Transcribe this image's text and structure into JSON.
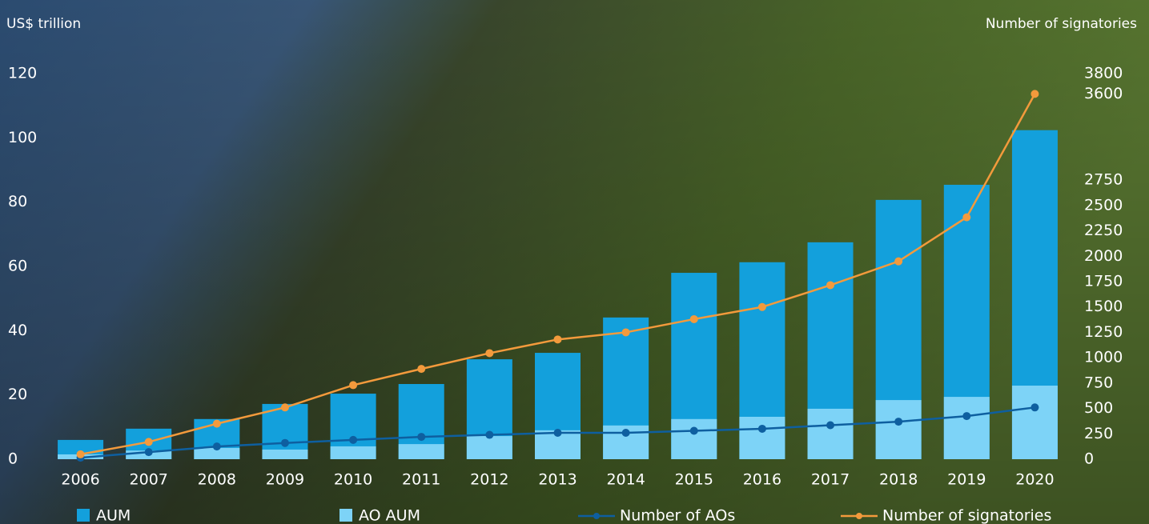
{
  "chart_data": {
    "type": "bar",
    "y_label": "US$ trillion",
    "y2_label": "Number of signatories",
    "categories": [
      "2006",
      "2007",
      "2008",
      "2009",
      "2010",
      "2011",
      "2012",
      "2013",
      "2014",
      "2015",
      "2016",
      "2017",
      "2018",
      "2019",
      "2020"
    ],
    "ylim": [
      0,
      120
    ],
    "yticks": [
      0,
      20,
      40,
      60,
      80,
      100,
      120
    ],
    "y2lim": [
      0,
      3800
    ],
    "y2ticks": [
      0,
      250,
      500,
      750,
      1000,
      1250,
      1500,
      1750,
      2000,
      2250,
      2500,
      2750,
      3600,
      3800
    ],
    "series": [
      {
        "name": "AUM",
        "type": "bar",
        "color": "#13a0dc",
        "values": [
          6.0,
          9.5,
          12.5,
          17.2,
          20.4,
          23.4,
          31.1,
          33.1,
          44.1,
          58.0,
          61.3,
          67.5,
          80.7,
          85.4,
          102.4
        ]
      },
      {
        "name": "AO AUM",
        "type": "bar",
        "color": "#7dd3f7",
        "values": [
          1.5,
          2.7,
          3.5,
          3.0,
          4.0,
          4.7,
          7.2,
          9.0,
          10.5,
          12.5,
          13.2,
          15.7,
          18.4,
          19.4,
          22.9
        ]
      },
      {
        "name": "Number of AOs",
        "type": "line",
        "axis": "y2",
        "color": "#0e5fa0",
        "values": [
          15,
          70,
          125,
          160,
          190,
          220,
          240,
          260,
          260,
          280,
          300,
          335,
          370,
          425,
          510
        ]
      },
      {
        "name": "Number of signatories",
        "type": "line",
        "axis": "y2",
        "color": "#f39a3c",
        "values": [
          48,
          170,
          350,
          510,
          730,
          890,
          1045,
          1180,
          1250,
          1380,
          1500,
          1715,
          1950,
          2384,
          3600
        ]
      }
    ]
  }
}
